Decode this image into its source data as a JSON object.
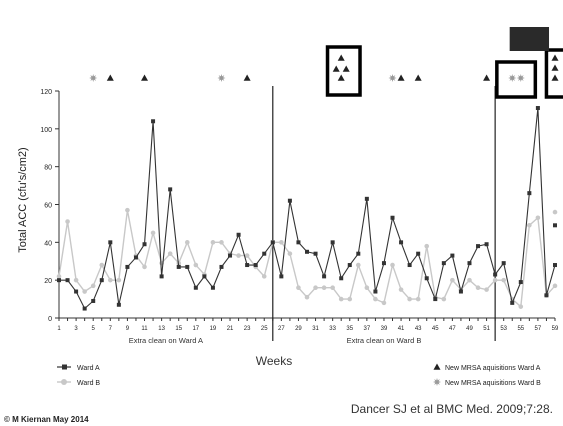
{
  "chart_data": {
    "type": "line",
    "ylabel": "Total ACC (cfu's/cm2)",
    "xlabel": "Weeks",
    "ylim": [
      0,
      120
    ],
    "yticks": [
      0,
      20,
      40,
      60,
      80,
      100,
      120
    ],
    "xlim": [
      1,
      59
    ],
    "xticks": [
      1,
      3,
      5,
      7,
      9,
      11,
      13,
      15,
      17,
      19,
      21,
      23,
      25,
      27,
      29,
      31,
      33,
      35,
      37,
      39,
      41,
      43,
      45,
      47,
      49,
      51,
      53,
      55,
      57,
      59
    ],
    "grid": false,
    "series": [
      {
        "name": "Ward A",
        "color": "#333333",
        "marker": "square",
        "x": [
          1,
          2,
          3,
          4,
          5,
          6,
          7,
          8,
          9,
          10,
          11,
          12,
          13,
          14,
          15,
          16,
          17,
          18,
          19,
          20,
          21,
          22,
          23,
          24,
          25,
          26,
          27,
          28,
          29,
          30,
          31,
          32,
          33,
          34,
          35,
          36,
          37,
          38,
          39,
          40,
          41,
          42,
          43,
          44,
          45,
          46,
          47,
          48,
          49,
          50,
          51,
          52,
          53,
          54,
          55,
          56,
          57,
          58,
          59
        ],
        "values": [
          20,
          20,
          14,
          5,
          9,
          20,
          40,
          7,
          27,
          32,
          39,
          104,
          22,
          68,
          27,
          27,
          16,
          22,
          16,
          27,
          33,
          44,
          28,
          28,
          34,
          40,
          22,
          62,
          40,
          35,
          34,
          22,
          40,
          21,
          28,
          34,
          63,
          14,
          29,
          53,
          40,
          28,
          34,
          21,
          10,
          29,
          33,
          14,
          29,
          38,
          39,
          23,
          29,
          8,
          19,
          66,
          111,
          12,
          28
        ],
        "extra": [
          49
        ]
      },
      {
        "name": "Ward B",
        "color": "#c8c8c8",
        "marker": "circle",
        "x": [
          1,
          2,
          3,
          4,
          5,
          6,
          7,
          8,
          9,
          10,
          11,
          12,
          13,
          14,
          15,
          16,
          17,
          18,
          19,
          20,
          21,
          22,
          23,
          24,
          25,
          26,
          27,
          28,
          29,
          30,
          31,
          32,
          33,
          34,
          35,
          36,
          37,
          38,
          39,
          40,
          41,
          42,
          43,
          44,
          45,
          46,
          47,
          48,
          49,
          50,
          51,
          52,
          53,
          54,
          55,
          56,
          57,
          58,
          59
        ],
        "values": [
          22,
          51,
          20,
          14,
          17,
          28,
          20,
          20,
          57,
          33,
          27,
          45,
          29,
          34,
          29,
          40,
          28,
          23,
          40,
          40,
          34,
          33,
          33,
          27,
          22,
          40,
          40,
          34,
          16,
          11,
          16,
          16,
          16,
          10,
          10,
          28,
          16,
          10,
          8,
          28,
          15,
          10,
          10,
          38,
          11,
          10,
          20,
          15,
          20,
          16,
          15,
          20,
          20,
          10,
          6,
          49,
          53,
          12,
          17
        ],
        "extra": [
          56
        ]
      }
    ],
    "acquisitions_a_weeks": [
      7,
      11,
      23,
      34,
      41,
      43,
      51,
      59
    ],
    "acquisitions_a_stacked": [
      34,
      34,
      34,
      59,
      59
    ],
    "acquisitions_b_weeks": [
      5,
      20,
      40,
      54,
      55
    ],
    "period_dividers": [
      26,
      52
    ],
    "period_labels": [
      {
        "text": "Extra clean on Ward A",
        "center": 13.5
      },
      {
        "text": "Extra clean on Ward B",
        "center": 39
      }
    ],
    "legend": {
      "ward_a": "Ward A",
      "ward_b": "Ward B",
      "mrsa_a": "New MRSA aquisitions Ward A",
      "mrsa_b": "New MRSA aquisitions Ward B"
    }
  },
  "footer": {
    "credit": "© M Kiernan May 2014",
    "citation": "Dancer SJ et al BMC Med. 2009;7:28."
  }
}
